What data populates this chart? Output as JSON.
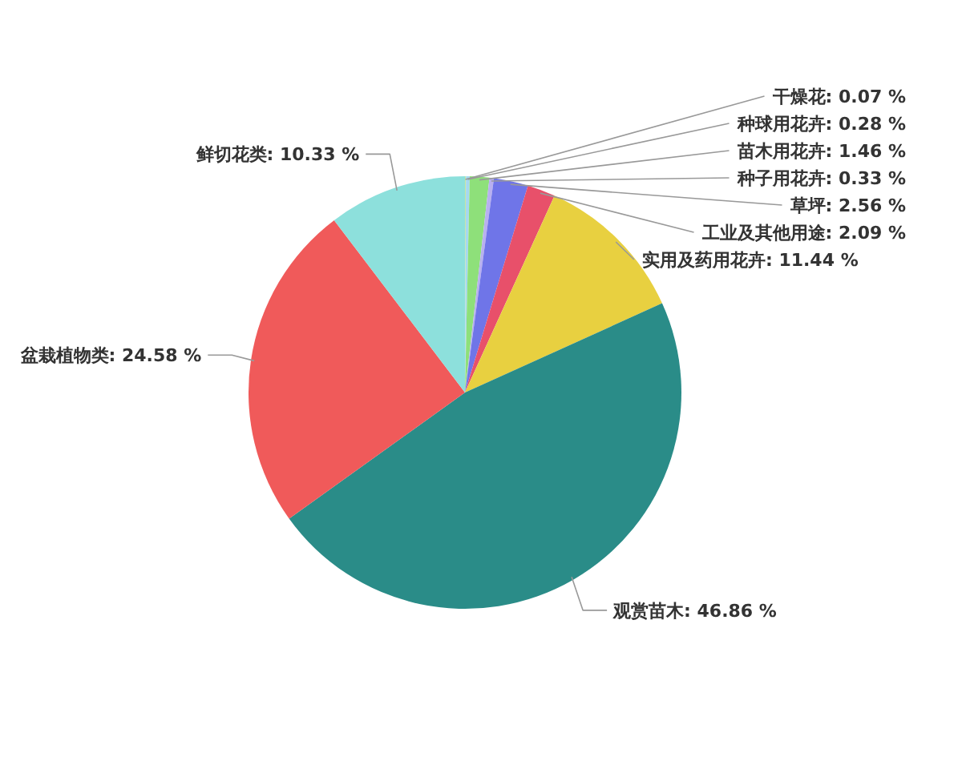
{
  "chart_data": {
    "type": "pie",
    "categories": [
      "干燥花",
      "种球用花卉",
      "苗木用花卉",
      "种子用花卉",
      "草坪",
      "工业及其他用途",
      "实用及药用花卉",
      "观赏苗木",
      "盆栽植物类",
      "鲜切花类"
    ],
    "values": [
      0.07,
      0.28,
      1.46,
      0.33,
      2.56,
      2.09,
      11.44,
      46.86,
      24.58,
      10.33
    ],
    "value_labels": [
      "0.07 %",
      "0.28 %",
      "1.46 %",
      "0.33 %",
      "2.56 %",
      "2.09 %",
      "11.44 %",
      "46.86 %",
      "24.58 %",
      "10.33 %"
    ],
    "colors": [
      "#c8e6a0",
      "#a6d8f0",
      "#8ee07a",
      "#b8b0f0",
      "#6f75e8",
      "#e8506a",
      "#e8d040",
      "#2a8c88",
      "#f05a5a",
      "#8de0dc"
    ]
  }
}
